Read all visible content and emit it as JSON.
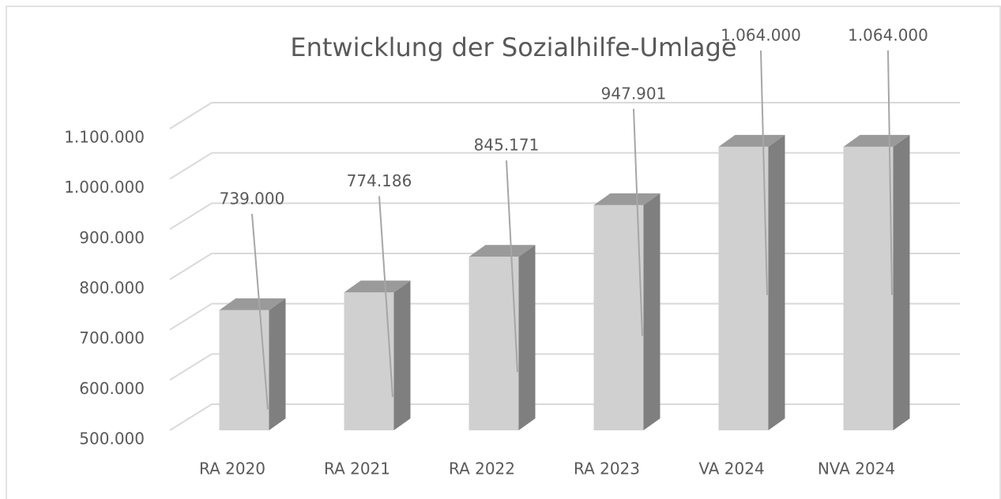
{
  "chart_data": {
    "type": "bar3d",
    "title": "Entwicklung der Sozialhilfe-Umlage",
    "categories": [
      "RA 2020",
      "RA 2021",
      "RA 2022",
      "RA 2023",
      "VA 2024",
      "NVA 2024"
    ],
    "values": [
      739000,
      774186,
      845171,
      947901,
      1064000,
      1064000
    ],
    "value_labels": [
      "739.000",
      "774.186",
      "845.171",
      "947.901",
      "1.064.000",
      "1.064.000"
    ],
    "color": "#d0d0d0",
    "ylim": [
      500000,
      1100000
    ],
    "yticks": [
      {
        "value": 500000,
        "label": "500.000"
      },
      {
        "value": 600000,
        "label": "600.000"
      },
      {
        "value": 700000,
        "label": "700.000"
      },
      {
        "value": 800000,
        "label": "800.000"
      },
      {
        "value": 900000,
        "label": "900.000"
      },
      {
        "value": 1000000,
        "label": "1.000.000"
      },
      {
        "value": 1100000,
        "label": "1.100.000"
      }
    ],
    "grid": true
  }
}
